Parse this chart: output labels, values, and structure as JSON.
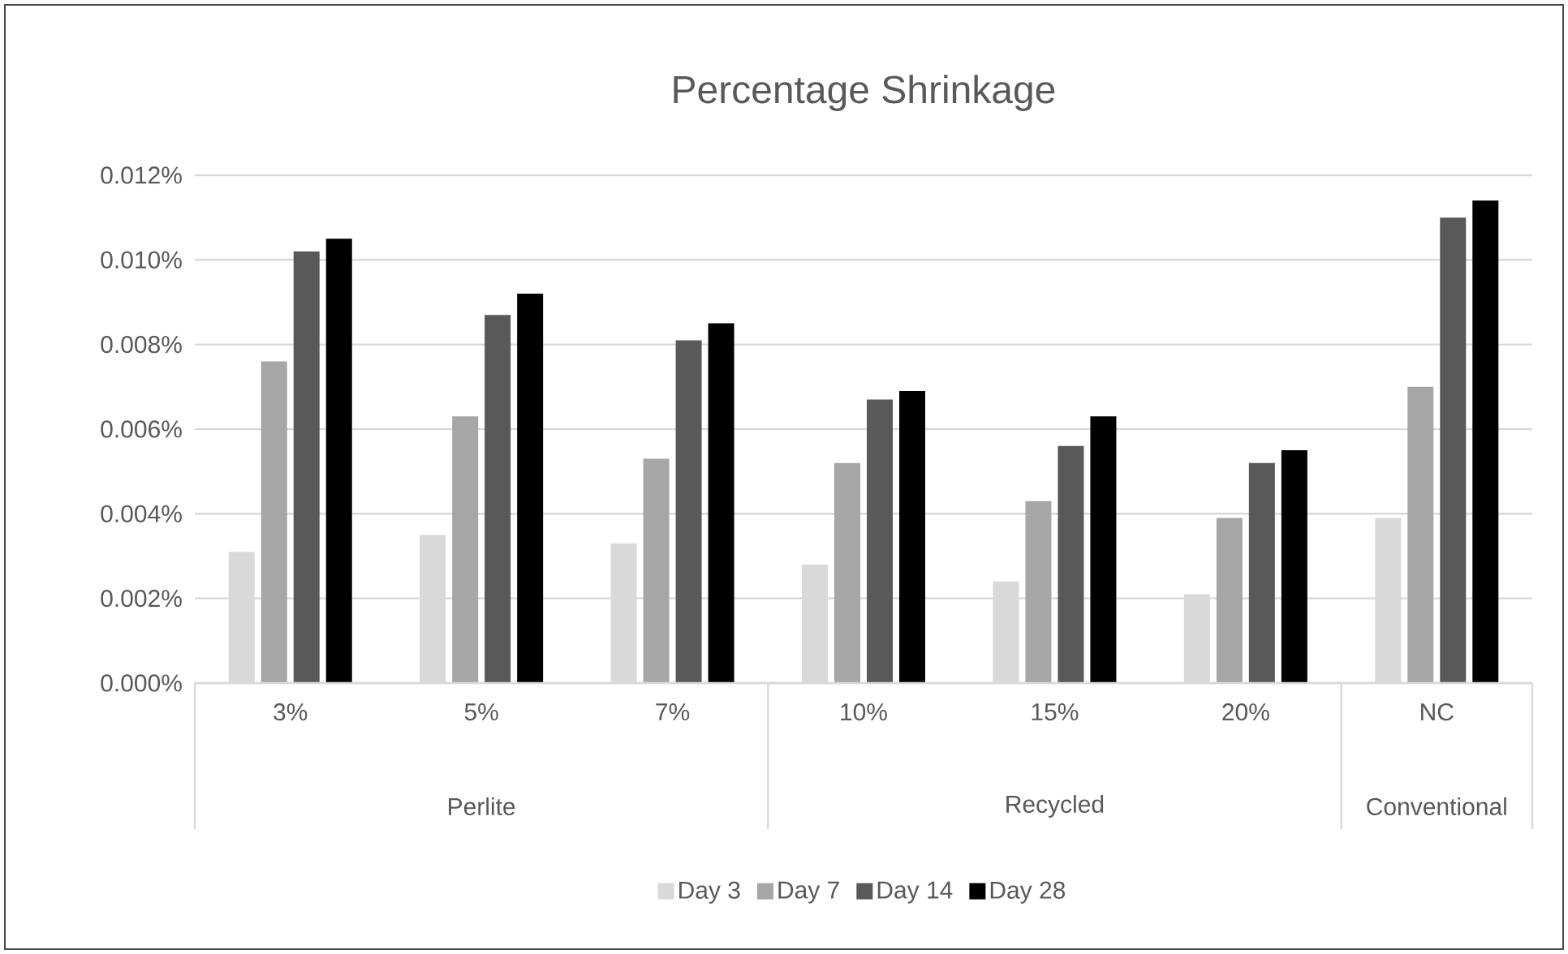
{
  "chart_data": {
    "type": "bar",
    "title": "Percentage Shrinkage",
    "categories": [
      "3%",
      "5%",
      "7%",
      "10%",
      "15%",
      "20%",
      "NC"
    ],
    "series": [
      {
        "name": "Day 3",
        "color": "#d9d9d9",
        "values": [
          0.0031,
          0.0035,
          0.0033,
          0.0028,
          0.0024,
          0.0021,
          0.0039
        ]
      },
      {
        "name": "Day 7",
        "color": "#a6a6a6",
        "values": [
          0.0076,
          0.0063,
          0.0053,
          0.0052,
          0.0043,
          0.0039,
          0.007
        ]
      },
      {
        "name": "Day 14",
        "color": "#595959",
        "values": [
          0.0102,
          0.0087,
          0.0081,
          0.0067,
          0.0056,
          0.0052,
          0.011
        ]
      },
      {
        "name": "Day 28",
        "color": "#000000",
        "values": [
          0.0105,
          0.0092,
          0.0085,
          0.0069,
          0.0063,
          0.0055,
          0.0114
        ]
      }
    ],
    "ylim": [
      0,
      0.012
    ],
    "yticks": [
      {
        "value": 0,
        "label": "0.000%"
      },
      {
        "value": 0.002,
        "label": "0.002%"
      },
      {
        "value": 0.004,
        "label": "0.004%"
      },
      {
        "value": 0.006,
        "label": "0.006%"
      },
      {
        "value": 0.008,
        "label": "0.008%"
      },
      {
        "value": 0.01,
        "label": "0.010%"
      },
      {
        "value": 0.012,
        "label": "0.012%"
      }
    ],
    "annotations": [
      "Perlite",
      "Recycled",
      "Conventional"
    ],
    "grid": "y",
    "legend": "bottom"
  }
}
